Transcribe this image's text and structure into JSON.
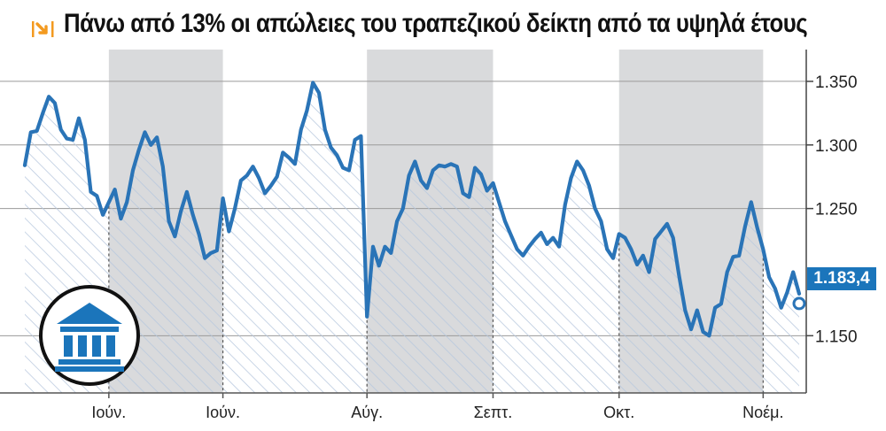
{
  "title": "Πάνω από 13% οι απώλειες του τραπεζικού δείκτη από τα υψηλά έτους",
  "icon": "trend-down-arrow-icon",
  "badge_icon": "bank-building-icon",
  "colors": {
    "line": "#2a74b7",
    "accent": "#1b75bb",
    "shade": "#d9dadc",
    "arrow": "#f39a1f"
  },
  "chart_data": {
    "type": "area",
    "title": "Πάνω από 13% οι απώλειες του τραπεζικού δείκτη από τα υψηλά έτους",
    "xlabel": "",
    "ylabel": "",
    "ylim": [
      1.105,
      1.375
    ],
    "yticks": [
      1.15,
      1.25,
      1.3,
      1.35
    ],
    "ytick_labels": [
      "1.150",
      "1.250",
      "1.300",
      "1.350"
    ],
    "xtick_labels": [
      "Ιούν.",
      "Ιούν.",
      "Αύγ.",
      "Σεπτ.",
      "Οκτ.",
      "Νοέμ."
    ],
    "xtick_index": [
      14,
      33,
      57,
      78,
      99,
      123
    ],
    "shaded_month_bands": [
      [
        14,
        33
      ],
      [
        57,
        78
      ],
      [
        99,
        123
      ]
    ],
    "last_value_label": "1.183,4",
    "grid": true,
    "legend": "none",
    "values": [
      1.284,
      1.31,
      1.311,
      1.325,
      1.338,
      1.333,
      1.312,
      1.305,
      1.304,
      1.321,
      1.304,
      1.263,
      1.26,
      1.245,
      1.255,
      1.265,
      1.242,
      1.255,
      1.28,
      1.296,
      1.31,
      1.3,
      1.306,
      1.283,
      1.24,
      1.228,
      1.248,
      1.263,
      1.245,
      1.23,
      1.211,
      1.215,
      1.217,
      1.258,
      1.232,
      1.25,
      1.272,
      1.276,
      1.283,
      1.274,
      1.262,
      1.268,
      1.275,
      1.294,
      1.29,
      1.285,
      1.312,
      1.327,
      1.349,
      1.341,
      1.312,
      1.298,
      1.292,
      1.282,
      1.28,
      1.304,
      1.307,
      1.165,
      1.22,
      1.205,
      1.22,
      1.215,
      1.24,
      1.25,
      1.276,
      1.287,
      1.272,
      1.266,
      1.28,
      1.284,
      1.283,
      1.285,
      1.283,
      1.262,
      1.259,
      1.282,
      1.277,
      1.264,
      1.27,
      1.255,
      1.24,
      1.229,
      1.218,
      1.213,
      1.22,
      1.226,
      1.231,
      1.222,
      1.227,
      1.22,
      1.253,
      1.274,
      1.287,
      1.28,
      1.268,
      1.25,
      1.24,
      1.218,
      1.211,
      1.23,
      1.227,
      1.218,
      1.206,
      1.213,
      1.2,
      1.226,
      1.232,
      1.238,
      1.227,
      1.197,
      1.17,
      1.155,
      1.17,
      1.153,
      1.15,
      1.172,
      1.175,
      1.2,
      1.212,
      1.213,
      1.236,
      1.255,
      1.235,
      1.218,
      1.196,
      1.187,
      1.172,
      1.184,
      1.2,
      1.183
    ]
  }
}
